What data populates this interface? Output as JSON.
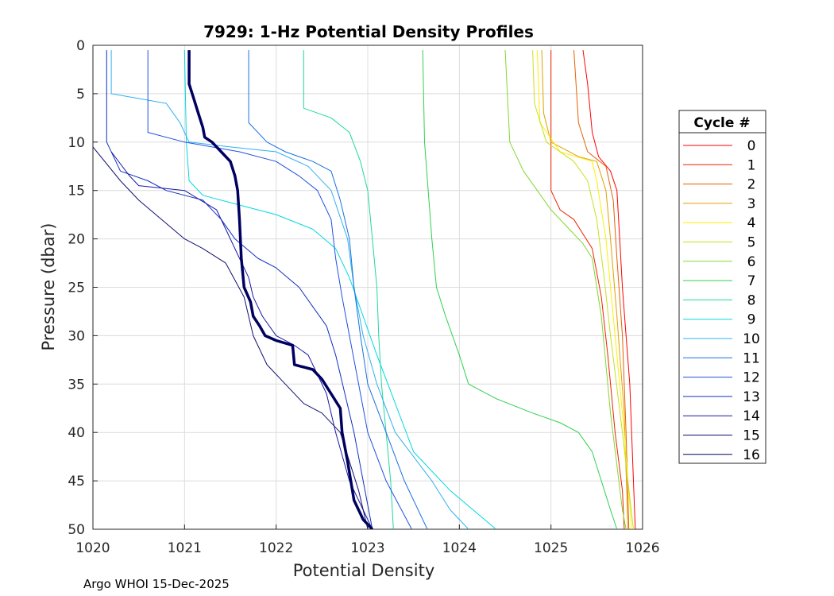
{
  "chart_data": {
    "type": "line",
    "title": "7929: 1-Hz Potential Density Profiles",
    "xlabel": "Potential Density",
    "ylabel": "Pressure (dbar)",
    "xlim": [
      1020,
      1026
    ],
    "ylim": [
      0,
      50
    ],
    "y_reversed": true,
    "grid": true,
    "xticks": [
      "1020",
      "1021",
      "1022",
      "1023",
      "1024",
      "1025",
      "1026"
    ],
    "yticks": [
      "0",
      "5",
      "10",
      "15",
      "20",
      "25",
      "30",
      "35",
      "40",
      "45",
      "50"
    ],
    "legend_title": "Cycle #",
    "legend_position": "right",
    "highlight_series": "16",
    "series": [
      {
        "name": "0",
        "color": "#ff0000",
        "points": [
          [
            1025.35,
            0.5
          ],
          [
            1025.4,
            4
          ],
          [
            1025.45,
            9
          ],
          [
            1025.52,
            11.5
          ],
          [
            1025.65,
            13
          ],
          [
            1025.72,
            15
          ],
          [
            1025.75,
            20
          ],
          [
            1025.78,
            25
          ],
          [
            1025.82,
            30
          ],
          [
            1025.86,
            35
          ],
          [
            1025.88,
            40
          ],
          [
            1025.9,
            45
          ],
          [
            1025.92,
            50
          ]
        ]
      },
      {
        "name": "1",
        "color": "#f02000",
        "points": [
          [
            1025.0,
            0.5
          ],
          [
            1025.0,
            15
          ],
          [
            1025.1,
            17
          ],
          [
            1025.25,
            18
          ],
          [
            1025.35,
            19.5
          ],
          [
            1025.45,
            21
          ],
          [
            1025.55,
            26
          ],
          [
            1025.62,
            32
          ],
          [
            1025.7,
            40
          ],
          [
            1025.78,
            46
          ],
          [
            1025.8,
            50
          ]
        ]
      },
      {
        "name": "2",
        "color": "#e56000",
        "points": [
          [
            1025.25,
            0.5
          ],
          [
            1025.28,
            5
          ],
          [
            1025.3,
            8
          ],
          [
            1025.4,
            11
          ],
          [
            1025.6,
            12.5
          ],
          [
            1025.68,
            16
          ],
          [
            1025.72,
            22
          ],
          [
            1025.78,
            30
          ],
          [
            1025.82,
            40
          ],
          [
            1025.85,
            50
          ]
        ]
      },
      {
        "name": "3",
        "color": "#e0a000",
        "points": [
          [
            1024.9,
            0.5
          ],
          [
            1024.92,
            7
          ],
          [
            1025.0,
            10
          ],
          [
            1025.3,
            11.5
          ],
          [
            1025.5,
            12
          ],
          [
            1025.6,
            15
          ],
          [
            1025.65,
            20
          ],
          [
            1025.72,
            28
          ],
          [
            1025.8,
            38
          ],
          [
            1025.84,
            50
          ]
        ]
      },
      {
        "name": "4",
        "color": "#ffee00",
        "points": [
          [
            1024.85,
            0.5
          ],
          [
            1024.88,
            8
          ],
          [
            1025.1,
            11
          ],
          [
            1025.45,
            12
          ],
          [
            1025.5,
            14
          ],
          [
            1025.6,
            20
          ],
          [
            1025.7,
            30
          ],
          [
            1025.8,
            40
          ],
          [
            1025.88,
            50
          ]
        ]
      },
      {
        "name": "5",
        "color": "#c8e020",
        "points": [
          [
            1024.8,
            0.5
          ],
          [
            1024.82,
            6
          ],
          [
            1024.95,
            10
          ],
          [
            1025.25,
            12
          ],
          [
            1025.4,
            14
          ],
          [
            1025.5,
            18
          ],
          [
            1025.58,
            24
          ],
          [
            1025.65,
            30
          ],
          [
            1025.78,
            40
          ],
          [
            1025.9,
            50
          ]
        ]
      },
      {
        "name": "6",
        "color": "#80d830",
        "points": [
          [
            1024.5,
            0.5
          ],
          [
            1024.55,
            10
          ],
          [
            1024.7,
            13
          ],
          [
            1024.85,
            15
          ],
          [
            1025.0,
            17
          ],
          [
            1025.2,
            19
          ],
          [
            1025.35,
            20.5
          ],
          [
            1025.45,
            22
          ],
          [
            1025.55,
            28
          ],
          [
            1025.65,
            38
          ],
          [
            1025.78,
            48
          ],
          [
            1025.82,
            50
          ]
        ]
      },
      {
        "name": "7",
        "color": "#30d050",
        "points": [
          [
            1023.6,
            0.5
          ],
          [
            1023.62,
            10
          ],
          [
            1023.7,
            20
          ],
          [
            1023.75,
            25
          ],
          [
            1023.85,
            28
          ],
          [
            1024.0,
            32
          ],
          [
            1024.1,
            35
          ],
          [
            1024.4,
            36.5
          ],
          [
            1024.8,
            38
          ],
          [
            1025.1,
            39
          ],
          [
            1025.3,
            40
          ],
          [
            1025.45,
            42
          ],
          [
            1025.55,
            45
          ],
          [
            1025.65,
            48
          ],
          [
            1025.72,
            50
          ]
        ]
      },
      {
        "name": "8",
        "color": "#20d8a0",
        "points": [
          [
            1022.3,
            0.5
          ],
          [
            1022.3,
            6.5
          ],
          [
            1022.6,
            7.5
          ],
          [
            1022.8,
            9
          ],
          [
            1022.92,
            12
          ],
          [
            1023.0,
            15
          ],
          [
            1023.05,
            20
          ],
          [
            1023.1,
            25
          ],
          [
            1023.12,
            30
          ],
          [
            1023.15,
            35
          ],
          [
            1023.2,
            40
          ],
          [
            1023.25,
            45
          ],
          [
            1023.28,
            50
          ]
        ]
      },
      {
        "name": "9",
        "color": "#00d8e0",
        "points": [
          [
            1021.0,
            0.5
          ],
          [
            1021.02,
            10
          ],
          [
            1021.05,
            14
          ],
          [
            1021.2,
            15.5
          ],
          [
            1021.6,
            16.5
          ],
          [
            1022.0,
            17.5
          ],
          [
            1022.4,
            19
          ],
          [
            1022.65,
            21
          ],
          [
            1022.8,
            24
          ],
          [
            1022.95,
            28
          ],
          [
            1023.1,
            32
          ],
          [
            1023.3,
            37
          ],
          [
            1023.5,
            42
          ],
          [
            1023.9,
            46
          ],
          [
            1024.4,
            50
          ]
        ]
      },
      {
        "name": "10",
        "color": "#30b0f0",
        "points": [
          [
            1020.2,
            0.5
          ],
          [
            1020.2,
            5
          ],
          [
            1020.5,
            5.5
          ],
          [
            1020.8,
            6
          ],
          [
            1020.95,
            8
          ],
          [
            1021.05,
            10
          ],
          [
            1021.5,
            10.5
          ],
          [
            1022.0,
            11
          ],
          [
            1022.35,
            12.5
          ],
          [
            1022.6,
            15
          ],
          [
            1022.78,
            20
          ],
          [
            1022.85,
            25
          ],
          [
            1022.95,
            30
          ],
          [
            1023.1,
            35
          ],
          [
            1023.3,
            40
          ],
          [
            1023.7,
            45
          ],
          [
            1023.9,
            48
          ],
          [
            1024.1,
            50
          ]
        ]
      },
      {
        "name": "11",
        "color": "#1870e0",
        "points": [
          [
            1021.7,
            0.5
          ],
          [
            1021.7,
            8
          ],
          [
            1021.9,
            10
          ],
          [
            1022.1,
            11
          ],
          [
            1022.4,
            12
          ],
          [
            1022.6,
            13
          ],
          [
            1022.7,
            16
          ],
          [
            1022.8,
            20
          ],
          [
            1022.85,
            25
          ],
          [
            1022.92,
            30
          ],
          [
            1023.0,
            35
          ],
          [
            1023.2,
            40
          ],
          [
            1023.4,
            45
          ],
          [
            1023.65,
            50
          ]
        ]
      },
      {
        "name": "12",
        "color": "#2050e0",
        "points": [
          [
            1020.6,
            0.5
          ],
          [
            1020.6,
            9
          ],
          [
            1021.0,
            10
          ],
          [
            1021.6,
            11
          ],
          [
            1022.0,
            12
          ],
          [
            1022.25,
            13.5
          ],
          [
            1022.45,
            15
          ],
          [
            1022.6,
            18
          ],
          [
            1022.65,
            22
          ],
          [
            1022.72,
            26
          ],
          [
            1022.8,
            30
          ],
          [
            1022.9,
            35
          ],
          [
            1023.0,
            40
          ],
          [
            1023.2,
            45
          ],
          [
            1023.48,
            50
          ]
        ]
      },
      {
        "name": "13",
        "color": "#1030c0",
        "points": [
          [
            1020.15,
            0.5
          ],
          [
            1020.15,
            10
          ],
          [
            1020.3,
            13
          ],
          [
            1020.6,
            14
          ],
          [
            1020.8,
            15
          ],
          [
            1021.2,
            16
          ],
          [
            1021.4,
            18
          ],
          [
            1021.55,
            20
          ],
          [
            1021.8,
            22
          ],
          [
            1022.0,
            23
          ],
          [
            1022.25,
            25
          ],
          [
            1022.4,
            27
          ],
          [
            1022.55,
            29
          ],
          [
            1022.65,
            32
          ],
          [
            1022.75,
            36
          ],
          [
            1022.85,
            40
          ],
          [
            1022.95,
            45
          ],
          [
            1023.05,
            50
          ]
        ]
      },
      {
        "name": "14",
        "color": "#1818a8",
        "points": [
          [
            1020.2,
            11
          ],
          [
            1020.4,
            13.5
          ],
          [
            1020.5,
            14.5
          ],
          [
            1021.0,
            15
          ],
          [
            1021.35,
            17
          ],
          [
            1021.5,
            20
          ],
          [
            1021.6,
            22
          ],
          [
            1021.7,
            24
          ],
          [
            1021.75,
            26
          ],
          [
            1021.85,
            28
          ],
          [
            1022.0,
            30
          ],
          [
            1022.2,
            31
          ],
          [
            1022.35,
            32
          ],
          [
            1022.45,
            34
          ],
          [
            1022.55,
            36
          ],
          [
            1022.65,
            40
          ],
          [
            1022.8,
            45
          ],
          [
            1022.95,
            48
          ],
          [
            1023.05,
            50
          ]
        ]
      },
      {
        "name": "15",
        "color": "#101070",
        "points": [
          [
            1020.0,
            10.5
          ],
          [
            1020.3,
            14
          ],
          [
            1020.5,
            16
          ],
          [
            1020.75,
            18
          ],
          [
            1021.0,
            20
          ],
          [
            1021.2,
            21
          ],
          [
            1021.45,
            22.5
          ],
          [
            1021.65,
            26
          ],
          [
            1021.75,
            30
          ],
          [
            1021.9,
            33
          ],
          [
            1022.1,
            35
          ],
          [
            1022.3,
            37
          ],
          [
            1022.5,
            38
          ],
          [
            1022.7,
            40
          ],
          [
            1022.8,
            43
          ],
          [
            1022.9,
            46
          ],
          [
            1023.0,
            50
          ]
        ]
      },
      {
        "name": "16",
        "color": "#000060",
        "points": [
          [
            1021.05,
            0.5
          ],
          [
            1021.05,
            4
          ],
          [
            1021.1,
            5.5
          ],
          [
            1021.15,
            7
          ],
          [
            1021.2,
            8.5
          ],
          [
            1021.22,
            9.5
          ],
          [
            1021.3,
            10
          ],
          [
            1021.4,
            11
          ],
          [
            1021.5,
            12
          ],
          [
            1021.55,
            13.5
          ],
          [
            1021.58,
            15
          ],
          [
            1021.6,
            18
          ],
          [
            1021.62,
            22
          ],
          [
            1021.65,
            25
          ],
          [
            1021.72,
            26.5
          ],
          [
            1021.75,
            28
          ],
          [
            1021.82,
            29
          ],
          [
            1021.88,
            30
          ],
          [
            1022.0,
            30.5
          ],
          [
            1022.18,
            31
          ],
          [
            1022.2,
            33
          ],
          [
            1022.4,
            33.5
          ],
          [
            1022.5,
            34.5
          ],
          [
            1022.6,
            36
          ],
          [
            1022.7,
            37.5
          ],
          [
            1022.72,
            40
          ],
          [
            1022.78,
            43
          ],
          [
            1022.85,
            47
          ],
          [
            1022.95,
            49
          ],
          [
            1023.05,
            50
          ]
        ]
      }
    ]
  },
  "footer": "Argo WHOI 15-Dec-2025"
}
